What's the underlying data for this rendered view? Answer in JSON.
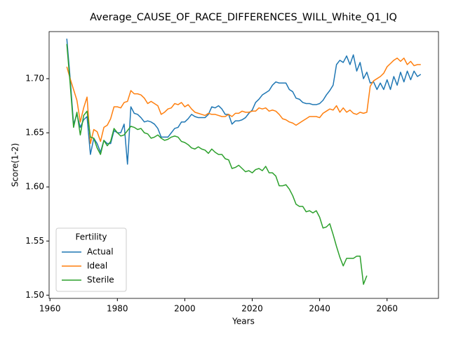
{
  "chart_data": {
    "type": "line",
    "title": "Average_CAUSE_OF_RACE_DIFFERENCES_WILL_White_Q1_IQ",
    "xlabel": "Years",
    "ylabel": "Score(1-2)",
    "legend_title": "Fertility",
    "legend": "lower left",
    "grid": false,
    "x": [
      1965,
      1966,
      1967,
      1968,
      1969,
      1970,
      1971,
      1972,
      1973,
      1974,
      1975,
      1976,
      1977,
      1978,
      1979,
      1980,
      1981,
      1982,
      1983,
      1984,
      1985,
      1986,
      1987,
      1988,
      1989,
      1990,
      1991,
      1992,
      1993,
      1994,
      1995,
      1996,
      1997,
      1998,
      1999,
      2000,
      2001,
      2002,
      2003,
      2004,
      2005,
      2006,
      2007,
      2008,
      2009,
      2010,
      2011,
      2012,
      2013,
      2014,
      2015,
      2016,
      2017,
      2018,
      2019,
      2020,
      2021,
      2022,
      2023,
      2024,
      2025,
      2026,
      2027,
      2028,
      2029,
      2030,
      2031,
      2032,
      2033,
      2034,
      2035,
      2036,
      2037,
      2038,
      2039,
      2040,
      2041,
      2042,
      2043,
      2044,
      2045,
      2046,
      2047,
      2048,
      2049,
      2050,
      2051,
      2052,
      2053,
      2054,
      2055,
      2056,
      2057,
      2058,
      2059,
      2060,
      2061,
      2062,
      2063,
      2064,
      2065,
      2066,
      2067,
      2068,
      2069,
      2070
    ],
    "series": [
      {
        "name": "Actual",
        "color": "#1f77b4",
        "values": [
          1.737,
          1.7,
          1.658,
          1.667,
          1.655,
          1.662,
          1.665,
          1.63,
          1.645,
          1.64,
          1.632,
          1.643,
          1.64,
          1.64,
          1.652,
          1.65,
          1.65,
          1.658,
          1.621,
          1.674,
          1.668,
          1.667,
          1.664,
          1.66,
          1.661,
          1.66,
          1.658,
          1.654,
          1.646,
          1.646,
          1.646,
          1.65,
          1.654,
          1.655,
          1.66,
          1.66,
          1.663,
          1.667,
          1.665,
          1.664,
          1.664,
          1.664,
          1.667,
          1.674,
          1.673,
          1.675,
          1.672,
          1.667,
          1.667,
          1.658,
          1.661,
          1.661,
          1.662,
          1.664,
          1.668,
          1.671,
          1.678,
          1.681,
          1.685,
          1.687,
          1.689,
          1.694,
          1.697,
          1.696,
          1.696,
          1.696,
          1.69,
          1.688,
          1.682,
          1.681,
          1.678,
          1.677,
          1.677,
          1.676,
          1.676,
          1.677,
          1.68,
          1.685,
          1.689,
          1.694,
          1.713,
          1.717,
          1.715,
          1.721,
          1.713,
          1.722,
          1.707,
          1.715,
          1.7,
          1.706,
          1.696,
          1.697,
          1.69,
          1.696,
          1.69,
          1.699,
          1.69,
          1.702,
          1.694,
          1.706,
          1.697,
          1.707,
          1.699,
          1.707,
          1.702,
          1.704
        ]
      },
      {
        "name": "Ideal",
        "color": "#ff7f0e",
        "values": [
          1.711,
          1.7,
          1.69,
          1.68,
          1.66,
          1.673,
          1.683,
          1.64,
          1.653,
          1.651,
          1.642,
          1.655,
          1.657,
          1.663,
          1.674,
          1.674,
          1.673,
          1.678,
          1.679,
          1.689,
          1.686,
          1.686,
          1.685,
          1.682,
          1.677,
          1.679,
          1.677,
          1.675,
          1.667,
          1.669,
          1.672,
          1.673,
          1.677,
          1.676,
          1.678,
          1.674,
          1.676,
          1.672,
          1.669,
          1.668,
          1.667,
          1.666,
          1.668,
          1.667,
          1.667,
          1.666,
          1.665,
          1.665,
          1.667,
          1.665,
          1.668,
          1.668,
          1.67,
          1.669,
          1.669,
          1.67,
          1.67,
          1.673,
          1.672,
          1.673,
          1.67,
          1.671,
          1.67,
          1.667,
          1.663,
          1.662,
          1.66,
          1.659,
          1.657,
          1.659,
          1.661,
          1.663,
          1.665,
          1.665,
          1.665,
          1.664,
          1.668,
          1.67,
          1.672,
          1.671,
          1.675,
          1.669,
          1.673,
          1.669,
          1.671,
          1.668,
          1.667,
          1.669,
          1.668,
          1.669,
          1.693,
          1.698,
          1.7,
          1.702,
          1.705,
          1.711,
          1.714,
          1.717,
          1.719,
          1.716,
          1.719,
          1.713,
          1.716,
          1.712,
          1.713,
          1.713
        ]
      },
      {
        "name": "Sterile",
        "color": "#2ca02c",
        "values": [
          1.732,
          1.695,
          1.655,
          1.669,
          1.648,
          1.666,
          1.67,
          1.646,
          1.645,
          1.636,
          1.63,
          1.643,
          1.638,
          1.642,
          1.654,
          1.65,
          1.647,
          1.648,
          1.652,
          1.656,
          1.655,
          1.653,
          1.654,
          1.65,
          1.649,
          1.645,
          1.646,
          1.648,
          1.645,
          1.643,
          1.644,
          1.646,
          1.647,
          1.646,
          1.642,
          1.641,
          1.639,
          1.636,
          1.635,
          1.637,
          1.635,
          1.634,
          1.631,
          1.635,
          1.632,
          1.63,
          1.63,
          1.626,
          1.625,
          1.617,
          1.618,
          1.62,
          1.617,
          1.614,
          1.615,
          1.613,
          1.616,
          1.617,
          1.615,
          1.619,
          1.613,
          1.613,
          1.61,
          1.601,
          1.601,
          1.602,
          1.598,
          1.592,
          1.584,
          1.582,
          1.582,
          1.577,
          1.578,
          1.576,
          1.578,
          1.572,
          1.562,
          1.563,
          1.566,
          1.556,
          1.545,
          1.535,
          1.527,
          1.534,
          1.534,
          1.534,
          1.536,
          1.536,
          1.51,
          1.518,
          null,
          null,
          null,
          null,
          null,
          null,
          null,
          null,
          null,
          null,
          null,
          null,
          null,
          null,
          null,
          null
        ]
      }
    ],
    "xlim": [
      1959.75,
      2075.25
    ],
    "xticks": [
      1960,
      1980,
      2000,
      2020,
      2040,
      2060
    ],
    "ylim": [
      1.497,
      1.7435
    ],
    "yticks": [
      {
        "value": 1.5,
        "label": "1.50"
      },
      {
        "value": 1.55,
        "label": "1.55"
      },
      {
        "value": 1.6,
        "label": "1.60"
      },
      {
        "value": 1.65,
        "label": "1.65"
      },
      {
        "value": 1.7,
        "label": "1.70"
      }
    ]
  }
}
